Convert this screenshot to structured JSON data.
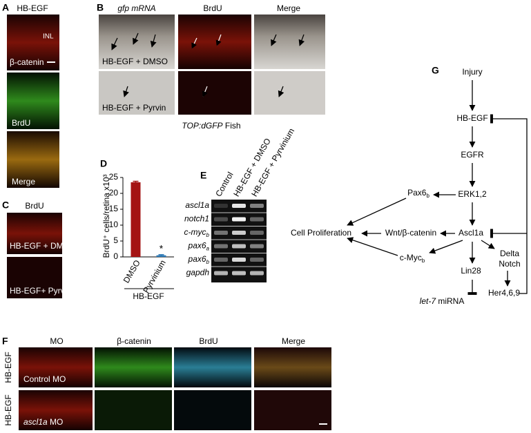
{
  "panel_labels": [
    "A",
    "B",
    "C",
    "D",
    "E",
    "F",
    "G"
  ],
  "panel_a": {
    "title": "HB-EGF",
    "inl": "INL",
    "row_labels": [
      "β-catenin",
      "BrdU",
      "Merge"
    ]
  },
  "panel_b": {
    "columns": [
      "gfp mRNA",
      "BrdU",
      "Merge"
    ],
    "rows": [
      "HB-EGF + DMSO",
      "HB-EGF + Pyrvin"
    ],
    "caption": {
      "italic": "TOP:dGFP",
      "text": "Fish"
    }
  },
  "panel_c": {
    "title": "BrdU",
    "rows": [
      "HB-EGF + DMSO",
      "HB-EGF+ Pyrvin"
    ]
  },
  "chart_data": {
    "type": "bar",
    "y_label": "BrdU⁺ cells/retina x10³",
    "categories": [
      "DMSO",
      "Pyrvinium"
    ],
    "values": [
      23.5,
      0.5
    ],
    "errors": [
      0.3,
      0.2
    ],
    "colors": [
      "#a41414",
      "#2b78b5"
    ],
    "ylim": [
      0,
      25
    ],
    "yticks": [
      0,
      5,
      10,
      15,
      20,
      25
    ],
    "annotation": "*",
    "group_label": "HB-EGF"
  },
  "panel_e": {
    "columns": [
      "Control",
      "HB-EGF + DMSO",
      "HB-EGF + Pyrvinium"
    ],
    "rows": [
      {
        "label": "ascl1a"
      },
      {
        "label": "notch1"
      },
      {
        "label": "c-myc",
        "sub": "b"
      },
      {
        "label": "pax6",
        "sub": "a"
      },
      {
        "label": "pax6",
        "sub": "b"
      },
      {
        "label": "gapdh"
      }
    ]
  },
  "panel_f": {
    "columns": [
      "MO",
      "β-catenin",
      "BrdU",
      "Merge"
    ],
    "side_labels": [
      "HB-EGF",
      "HB-EGF"
    ],
    "rows": [
      {
        "text": "Control MO"
      },
      {
        "italic": "ascl1a",
        "text": "MO"
      }
    ]
  },
  "diagram": {
    "injury": "Injury",
    "hbegf": "HB-EGF",
    "egfr": "EGFR",
    "erk": "ERK1,2",
    "pax6": {
      "label": "Pax6",
      "sub": "b"
    },
    "ascl1a": "Ascl1a",
    "wnt": "Wnt/β-catenin",
    "prolif": "Cell Proliferation",
    "cmyc": {
      "label": "c-Myc",
      "sub": "b"
    },
    "lin28": "Lin28",
    "delta": "Delta",
    "notch": "Notch",
    "her": "Her4,6,9",
    "let7": {
      "italic": "let-7",
      "text": "miRNA"
    }
  }
}
